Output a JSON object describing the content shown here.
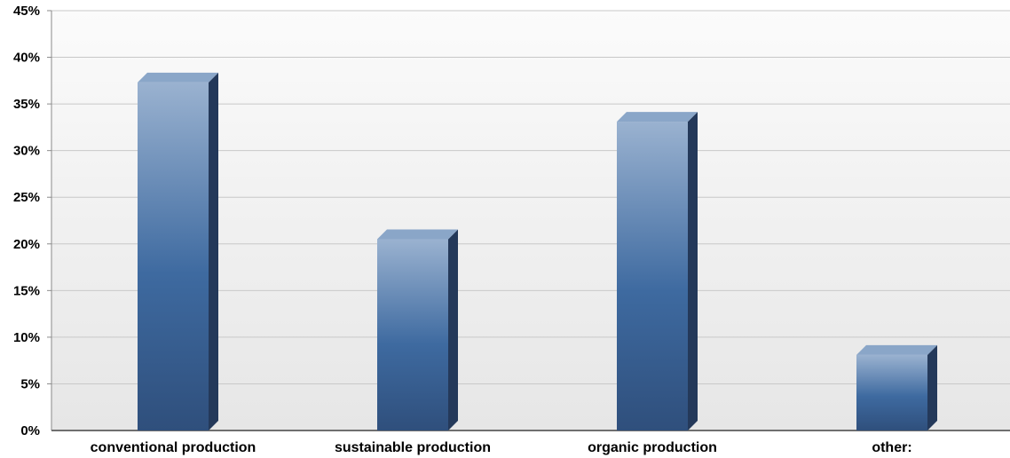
{
  "chart_data": {
    "type": "bar",
    "categories": [
      "conventional production",
      "sustainable production",
      "organic production",
      "other:"
    ],
    "values": [
      37.3,
      20.5,
      33.1,
      8.1
    ],
    "ylim": [
      0,
      45
    ],
    "yticks": [
      "0%",
      "5%",
      "10%",
      "15%",
      "20%",
      "25%",
      "30%",
      "35%",
      "40%",
      "45%"
    ],
    "grid": true,
    "legend": "none",
    "bar_color": "#3e6aa0",
    "bar_highlight": "#9ab2d0",
    "bar_side": "#24395a",
    "bar_top": "#8aa6c8"
  }
}
